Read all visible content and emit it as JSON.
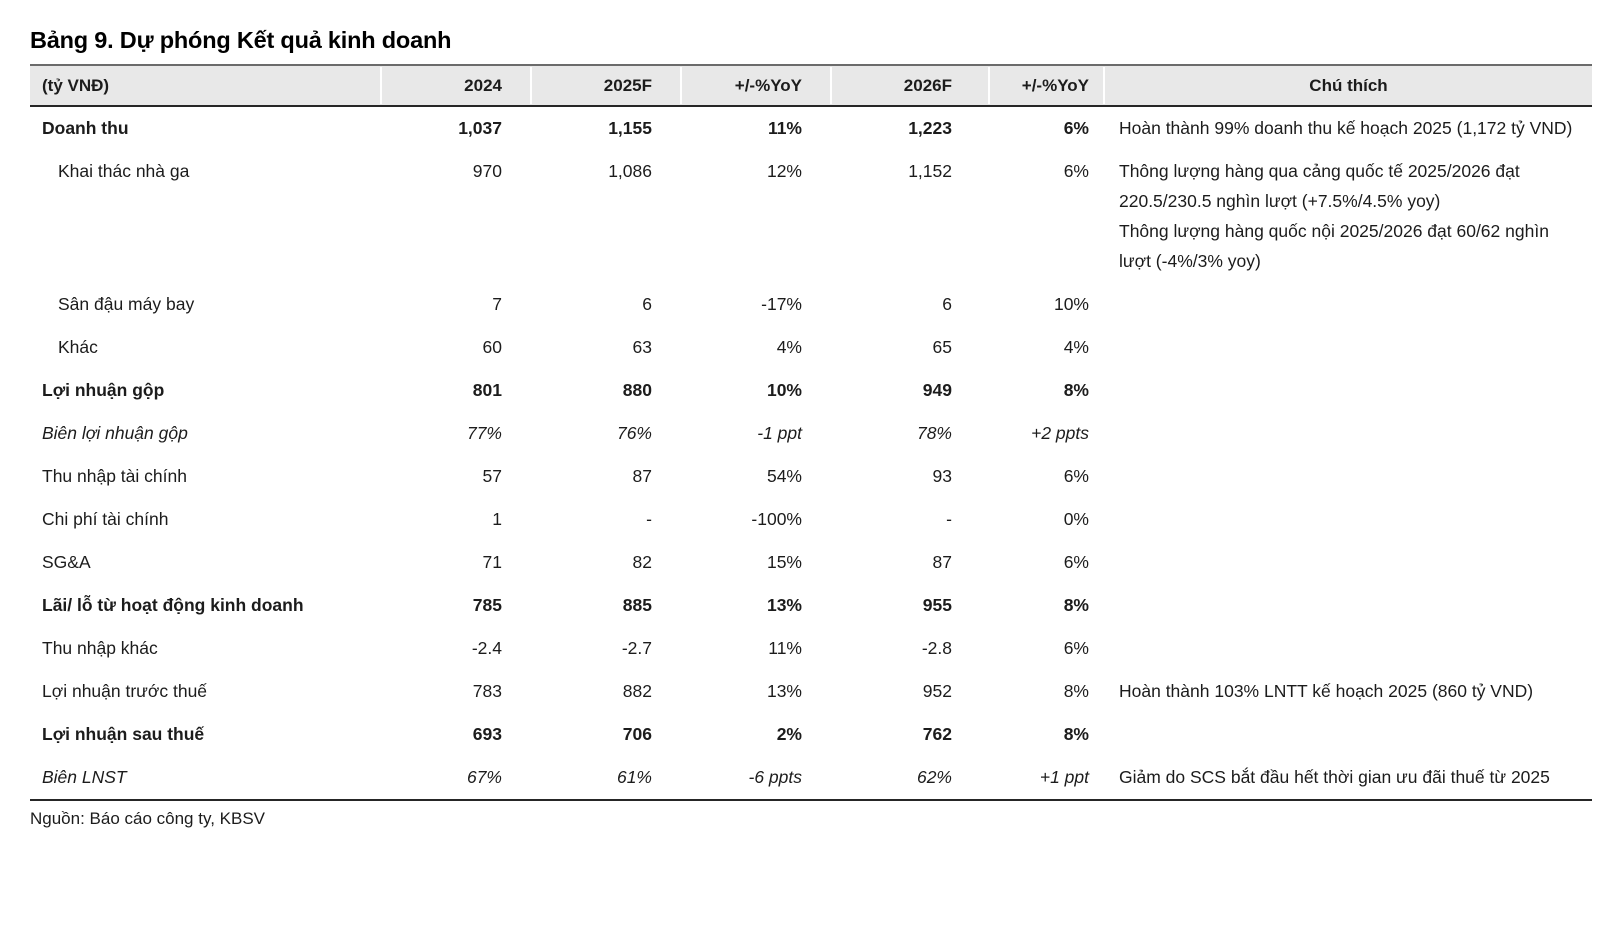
{
  "title": "Bảng 9. Dự phóng Kết quả kinh doanh",
  "colors": {
    "header_background": "#e8e8e8",
    "border_dark": "#262626",
    "border_top": "#6b6b6b",
    "text": "#1c1c1c"
  },
  "table": {
    "columns": [
      "(tỷ VNĐ)",
      "2024",
      "2025F",
      "+/-%YoY",
      "2026F",
      "+/-%YoY",
      "Chú thích"
    ],
    "rows": [
      {
        "label": "Doanh thu",
        "style": "bold",
        "indent": false,
        "values": [
          "1,037",
          "1,155",
          "11%",
          "1,223",
          "6%"
        ],
        "note": "Hoàn thành 99% doanh thu kế hoạch 2025 (1,172 tỷ VND)"
      },
      {
        "label": "Khai thác nhà ga",
        "style": "normal",
        "indent": true,
        "values": [
          "970",
          "1,086",
          "12%",
          "1,152",
          "6%"
        ],
        "note": "Thông lượng hàng qua cảng quốc tế 2025/2026 đạt 220.5/230.5 nghìn lượt (+7.5%/4.5% yoy)\nThông lượng hàng quốc nội 2025/2026 đạt 60/62 nghìn lượt (-4%/3% yoy)"
      },
      {
        "label": "Sân đậu máy bay",
        "style": "normal",
        "indent": true,
        "values": [
          "7",
          "6",
          "-17%",
          "6",
          "10%"
        ],
        "note": ""
      },
      {
        "label": "Khác",
        "style": "normal",
        "indent": true,
        "values": [
          "60",
          "63",
          "4%",
          "65",
          "4%"
        ],
        "note": ""
      },
      {
        "label": "Lợi nhuận gộp",
        "style": "bold",
        "indent": false,
        "values": [
          "801",
          "880",
          "10%",
          "949",
          "8%"
        ],
        "note": ""
      },
      {
        "label": "Biên lợi nhuận gộp",
        "style": "italic",
        "indent": false,
        "values": [
          "77%",
          "76%",
          "-1 ppt",
          "78%",
          "+2 ppts"
        ],
        "note": ""
      },
      {
        "label": "Thu nhập tài chính",
        "style": "normal",
        "indent": false,
        "values": [
          "57",
          "87",
          "54%",
          "93",
          "6%"
        ],
        "note": ""
      },
      {
        "label": "Chi phí tài chính",
        "style": "normal",
        "indent": false,
        "values": [
          "1",
          "-",
          "-100%",
          "-",
          "0%"
        ],
        "note": ""
      },
      {
        "label": "SG&A",
        "style": "normal",
        "indent": false,
        "values": [
          "71",
          "82",
          "15%",
          "87",
          "6%"
        ],
        "note": ""
      },
      {
        "label": "Lãi/ lỗ từ hoạt động kinh doanh",
        "style": "bold",
        "indent": false,
        "values": [
          "785",
          "885",
          "13%",
          "955",
          "8%"
        ],
        "note": ""
      },
      {
        "label": "Thu nhập khác",
        "style": "normal",
        "indent": false,
        "values": [
          "-2.4",
          "-2.7",
          "11%",
          "-2.8",
          "6%"
        ],
        "note": ""
      },
      {
        "label": "Lợi nhuận trước thuế",
        "style": "normal",
        "indent": false,
        "values": [
          "783",
          "882",
          "13%",
          "952",
          "8%"
        ],
        "note": "Hoàn thành 103% LNTT kế hoạch 2025 (860 tỷ VND)"
      },
      {
        "label": "Lợi nhuận sau thuế",
        "style": "bold",
        "indent": false,
        "values": [
          "693",
          "706",
          "2%",
          "762",
          "8%"
        ],
        "note": ""
      },
      {
        "label": "Biên LNST",
        "style": "italic",
        "indent": false,
        "values": [
          "67%",
          "61%",
          "-6 ppts",
          "62%",
          "+1 ppt"
        ],
        "note": "Giảm do SCS bắt đầu hết thời gian ưu đãi thuế từ 2025"
      }
    ]
  },
  "source": "Nguồn: Báo cáo công ty, KBSV"
}
